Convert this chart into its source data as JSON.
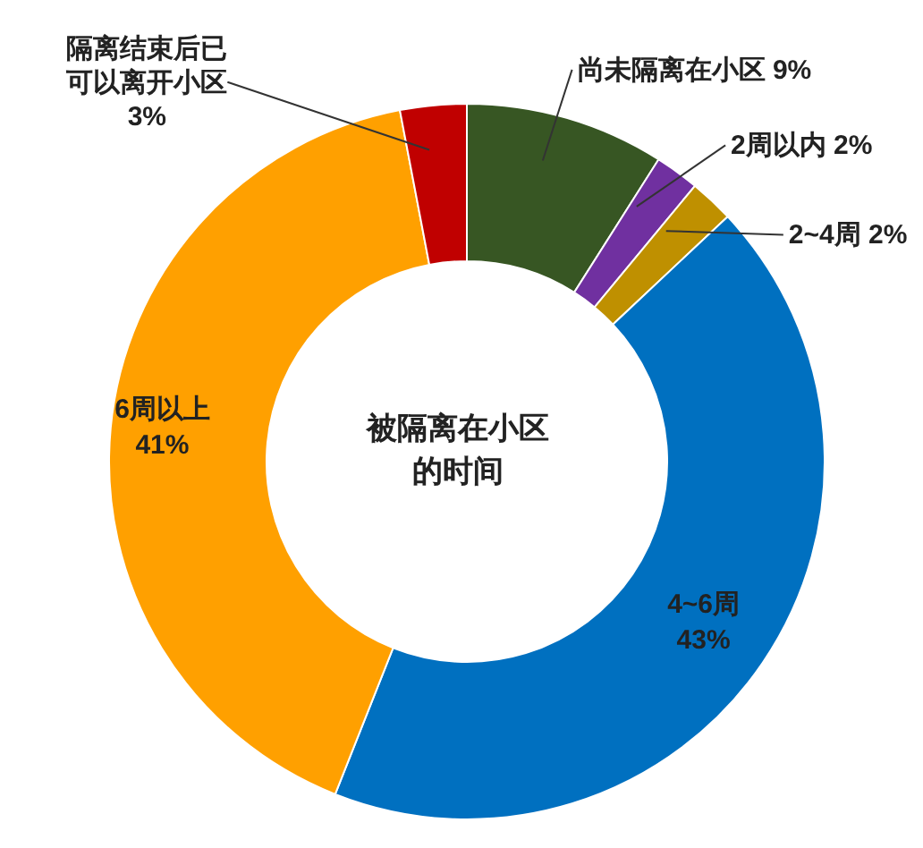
{
  "chart_data": {
    "type": "donut",
    "title": "被隔离在小区的时间",
    "categories": [
      "尚未隔离在小区",
      "2周以内",
      "2~4周",
      "4~6周",
      "6周以上",
      "隔离结束后已可以离开小区"
    ],
    "values": [
      9,
      2,
      2,
      43,
      41,
      3
    ],
    "value_labels": [
      "9%",
      "2%",
      "2%",
      "43%",
      "41%",
      "3%"
    ],
    "colors": [
      "#375623",
      "#7030a0",
      "#bf9000",
      "#0070c0",
      "#ffa000",
      "#c00000"
    ],
    "legend": false
  }
}
